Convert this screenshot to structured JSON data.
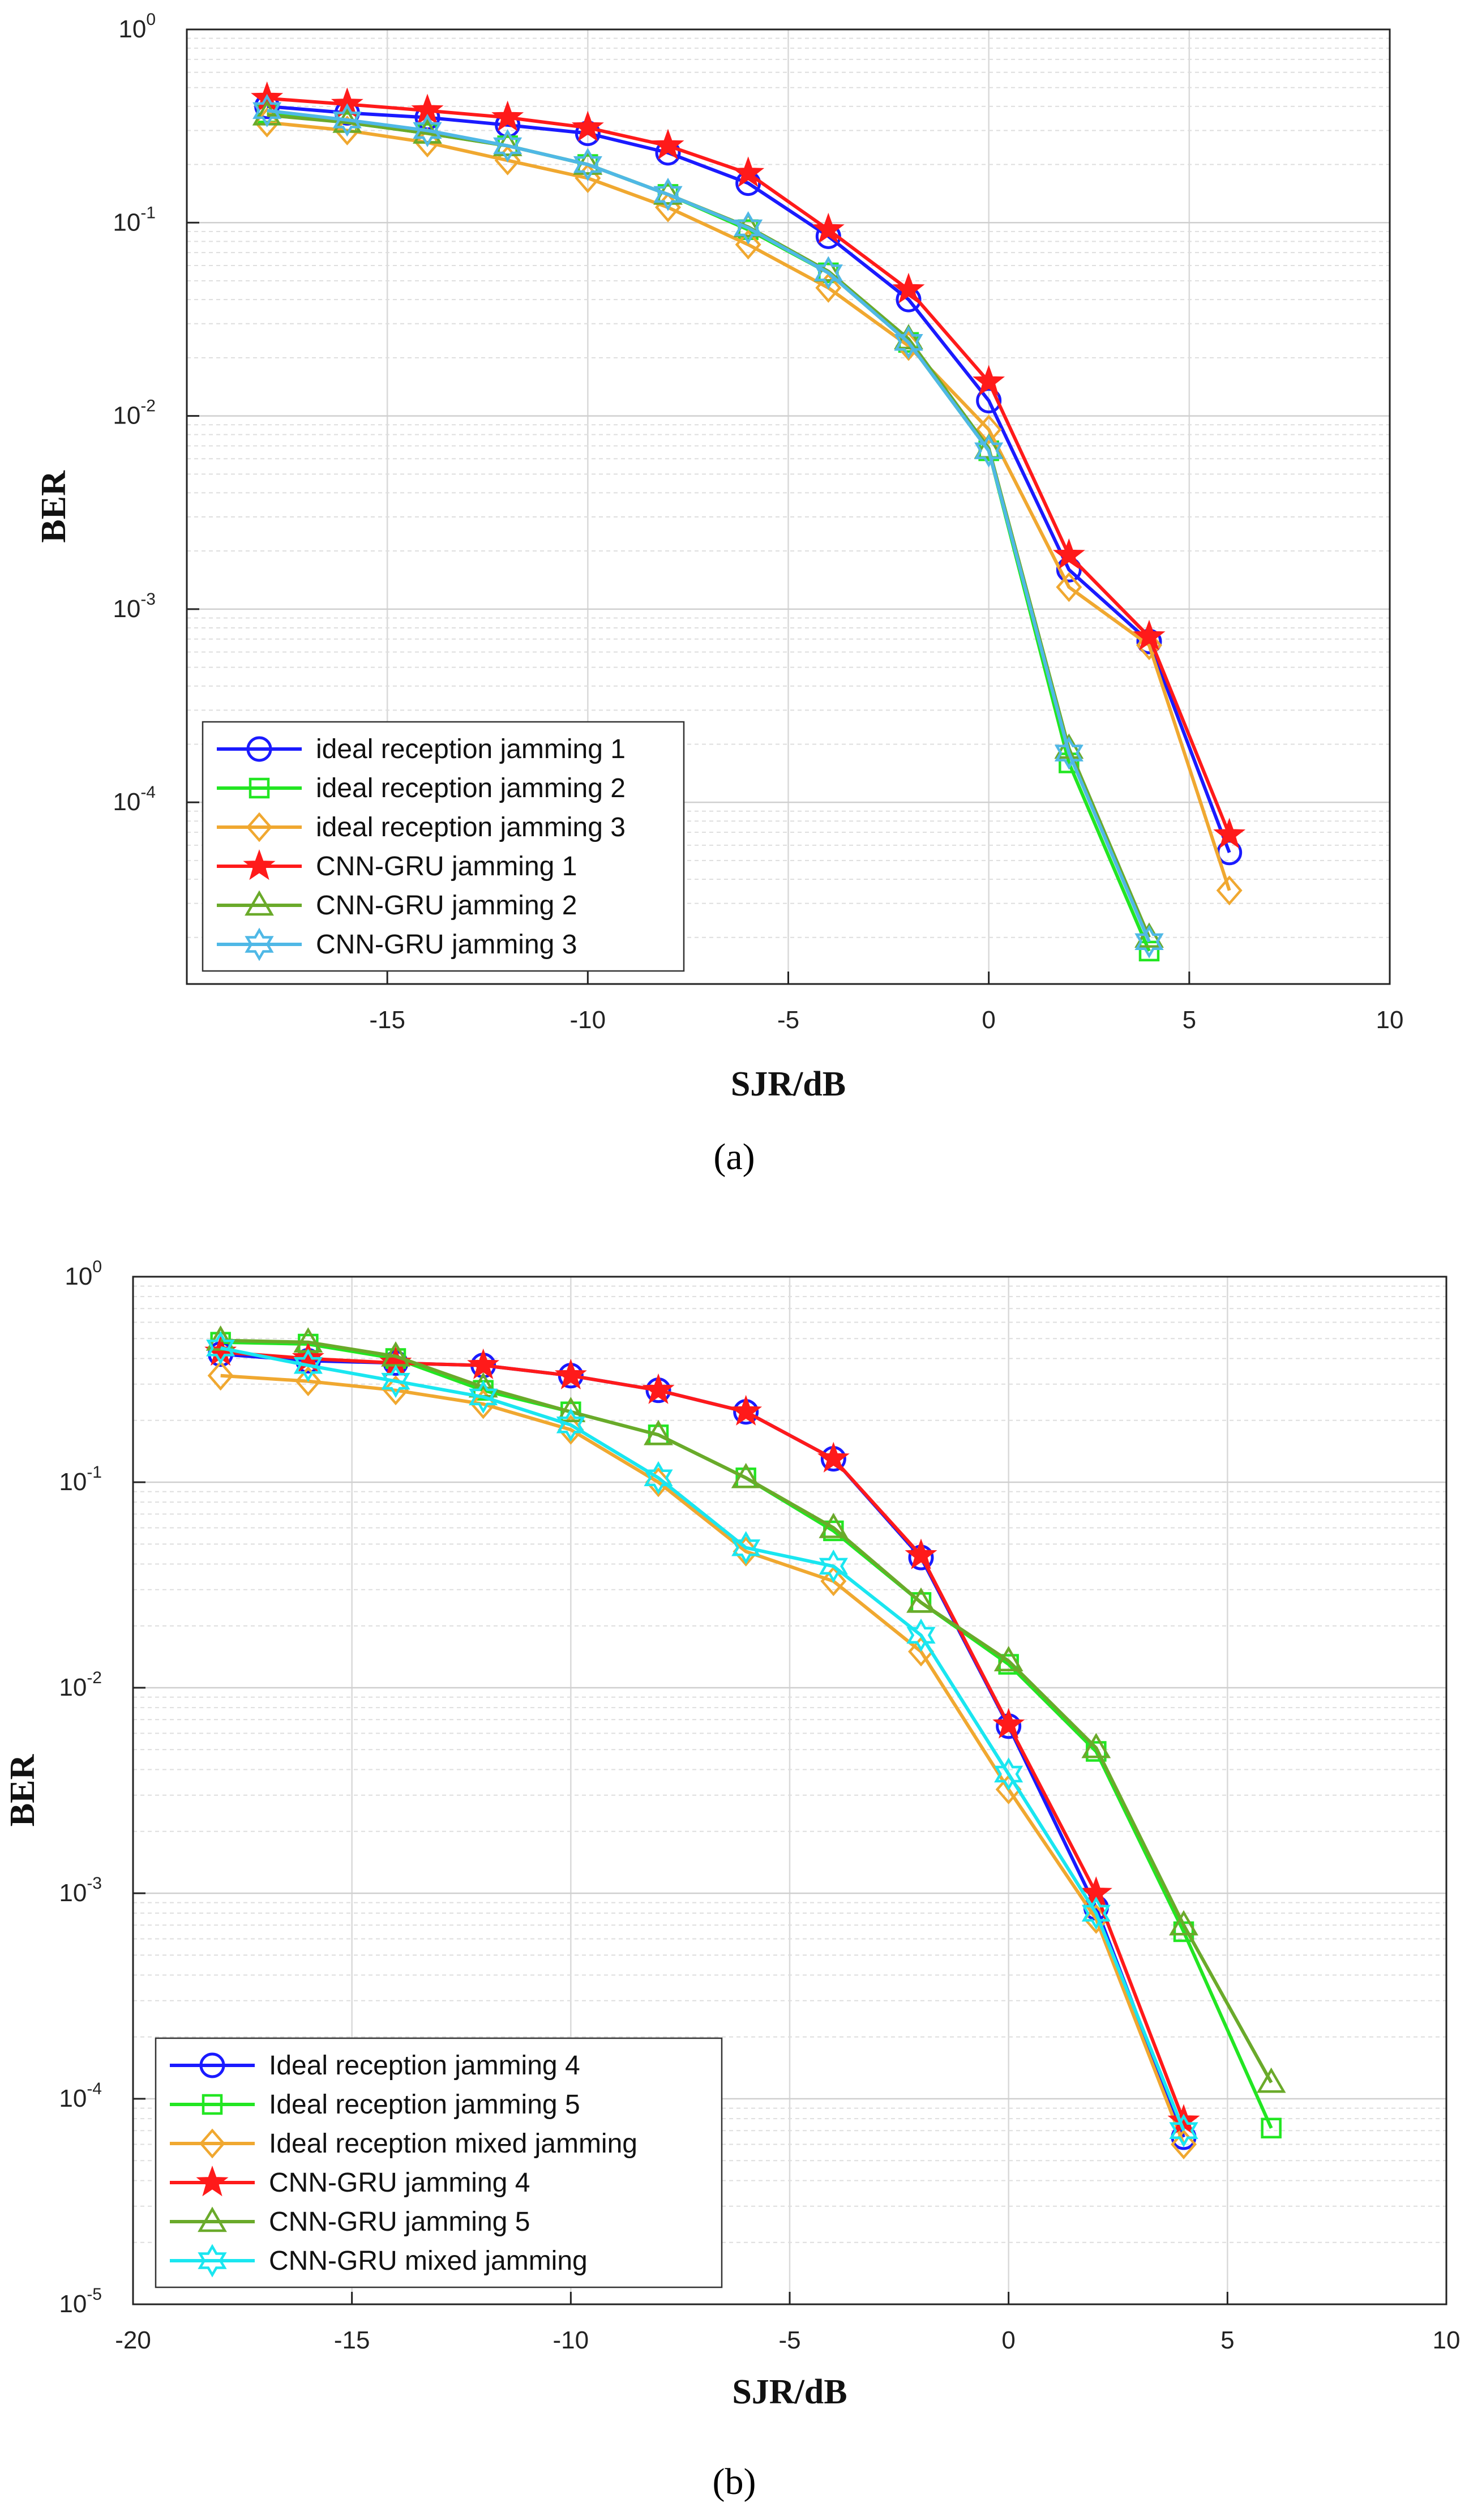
{
  "chart_data": [
    {
      "type": "line",
      "caption": "(a)",
      "xlabel": "SJR/dB",
      "ylabel": "BER",
      "yscale": "log",
      "xlim": [
        -20,
        10
      ],
      "ylim": [
        1e-05,
        1
      ],
      "xticks": [
        -15,
        -10,
        -5,
        0,
        5,
        10
      ],
      "xtick_labels": [
        "-15",
        "-10",
        "-5",
        "0",
        "5",
        "10"
      ],
      "yticks": [
        0.0001,
        0.001,
        0.01,
        0.1,
        1
      ],
      "ytick_labels": [
        {
          "base": "10",
          "exp": "-4"
        },
        {
          "base": "10",
          "exp": "-3"
        },
        {
          "base": "10",
          "exp": "-2"
        },
        {
          "base": "10",
          "exp": "-1"
        },
        {
          "base": "10",
          "exp": "0"
        }
      ],
      "grid": true,
      "legend_position": "bottom-left",
      "series": [
        {
          "name": "ideal reception jamming 1",
          "color": "#1a1aff",
          "marker": "circle",
          "x": [
            -18,
            -16,
            -14,
            -12,
            -10,
            -8,
            -6,
            -4,
            -2,
            0,
            2,
            4,
            6
          ],
          "y": [
            0.4,
            0.37,
            0.35,
            0.32,
            0.29,
            0.23,
            0.16,
            0.085,
            0.04,
            0.012,
            0.0016,
            0.00068,
            5.5e-05
          ]
        },
        {
          "name": "ideal reception jamming 2",
          "color": "#22e622",
          "marker": "square",
          "x": [
            -18,
            -16,
            -14,
            -12,
            -10,
            -8,
            -6,
            -4,
            -2,
            0,
            2,
            4
          ],
          "y": [
            0.37,
            0.33,
            0.29,
            0.25,
            0.2,
            0.14,
            0.092,
            0.055,
            0.024,
            0.0066,
            0.00016,
            1.7e-05
          ]
        },
        {
          "name": "ideal reception jamming 3",
          "color": "#f0a830",
          "marker": "diamond",
          "x": [
            -18,
            -16,
            -14,
            -12,
            -10,
            -8,
            -6,
            -4,
            -2,
            0,
            2,
            4,
            6
          ],
          "y": [
            0.33,
            0.3,
            0.26,
            0.21,
            0.17,
            0.12,
            0.077,
            0.046,
            0.023,
            0.0085,
            0.0013,
            0.00065,
            3.5e-05
          ]
        },
        {
          "name": "CNN-GRU jamming 1",
          "color": "#ff1a1a",
          "marker": "star",
          "x": [
            -18,
            -16,
            -14,
            -12,
            -10,
            -8,
            -6,
            -4,
            -2,
            0,
            2,
            4,
            6
          ],
          "y": [
            0.44,
            0.41,
            0.38,
            0.35,
            0.31,
            0.25,
            0.18,
            0.092,
            0.045,
            0.015,
            0.0019,
            0.00072,
            6.8e-05
          ]
        },
        {
          "name": "CNN-GRU jamming 2",
          "color": "#6aaa2a",
          "marker": "triangle",
          "x": [
            -18,
            -16,
            -14,
            -12,
            -10,
            -8,
            -6,
            -4,
            -2,
            0,
            2,
            4
          ],
          "y": [
            0.36,
            0.33,
            0.29,
            0.25,
            0.2,
            0.14,
            0.095,
            0.056,
            0.025,
            0.0068,
            0.00019,
            2e-05
          ]
        },
        {
          "name": "CNN-GRU jamming 3",
          "color": "#4fb8e6",
          "marker": "hexagram",
          "x": [
            -18,
            -16,
            -14,
            -12,
            -10,
            -8,
            -6,
            -4,
            -2,
            0,
            2,
            4
          ],
          "y": [
            0.38,
            0.34,
            0.3,
            0.25,
            0.2,
            0.14,
            0.094,
            0.055,
            0.024,
            0.0066,
            0.00018,
            1.9e-05
          ]
        }
      ]
    },
    {
      "type": "line",
      "caption": "(b)",
      "xlabel": "SJR/dB",
      "ylabel": "BER",
      "yscale": "log",
      "xlim": [
        -20,
        10
      ],
      "ylim": [
        1e-05,
        1
      ],
      "xticks": [
        -20,
        -15,
        -10,
        -5,
        0,
        5,
        10
      ],
      "xtick_labels": [
        "-20",
        "-15",
        "-10",
        "-5",
        "0",
        "5",
        "10"
      ],
      "yticks": [
        1e-05,
        0.0001,
        0.001,
        0.01,
        0.1,
        1
      ],
      "ytick_labels": [
        {
          "base": "10",
          "exp": "-5"
        },
        {
          "base": "10",
          "exp": "-4"
        },
        {
          "base": "10",
          "exp": "-3"
        },
        {
          "base": "10",
          "exp": "-2"
        },
        {
          "base": "10",
          "exp": "-1"
        },
        {
          "base": "10",
          "exp": "0"
        }
      ],
      "grid": true,
      "legend_position": "bottom-left",
      "series": [
        {
          "name": "Ideal reception  jamming 4",
          "color": "#1a1aff",
          "marker": "circle",
          "x": [
            -18,
            -16,
            -14,
            -12,
            -10,
            -8,
            -6,
            -4,
            -2,
            0,
            2,
            4
          ],
          "y": [
            0.42,
            0.39,
            0.38,
            0.37,
            0.33,
            0.28,
            0.22,
            0.13,
            0.043,
            0.0065,
            0.00085,
            6.5e-05
          ]
        },
        {
          "name": "Ideal reception  jamming 5",
          "color": "#22e622",
          "marker": "square",
          "x": [
            -18,
            -16,
            -14,
            -12,
            -10,
            -8,
            -6,
            -4,
            -2,
            0,
            2,
            4,
            6
          ],
          "y": [
            0.48,
            0.47,
            0.4,
            0.28,
            0.22,
            0.17,
            0.105,
            0.058,
            0.026,
            0.013,
            0.0049,
            0.00065,
            7.2e-05
          ]
        },
        {
          "name": "Ideal reception  mixed jamming",
          "color": "#f0a830",
          "marker": "diamond",
          "x": [
            -18,
            -16,
            -14,
            -12,
            -10,
            -8,
            -6,
            -4,
            -2,
            0,
            2,
            4
          ],
          "y": [
            0.33,
            0.31,
            0.28,
            0.24,
            0.18,
            0.1,
            0.046,
            0.033,
            0.015,
            0.0032,
            0.00075,
            6e-05
          ]
        },
        {
          "name": "CNN-GRU jamming 4",
          "color": "#ff1a1a",
          "marker": "star",
          "x": [
            -18,
            -16,
            -14,
            -12,
            -10,
            -8,
            -6,
            -4,
            -2,
            0,
            2,
            4
          ],
          "y": [
            0.43,
            0.4,
            0.38,
            0.37,
            0.33,
            0.28,
            0.22,
            0.13,
            0.044,
            0.0066,
            0.001,
            7.8e-05
          ]
        },
        {
          "name": "CNN-GRU jamming 5",
          "color": "#6aaa2a",
          "marker": "triangle",
          "x": [
            -18,
            -16,
            -14,
            -12,
            -10,
            -8,
            -6,
            -4,
            -2,
            0,
            2,
            4,
            6
          ],
          "y": [
            0.49,
            0.48,
            0.41,
            0.29,
            0.22,
            0.17,
            0.105,
            0.06,
            0.026,
            0.0135,
            0.0051,
            0.0007,
            0.00012
          ]
        },
        {
          "name": "CNN-GRU mixed jamming",
          "color": "#1ae6f0",
          "marker": "hexagram",
          "x": [
            -18,
            -16,
            -14,
            -12,
            -10,
            -8,
            -6,
            -4,
            -2,
            0,
            2,
            4
          ],
          "y": [
            0.45,
            0.37,
            0.31,
            0.26,
            0.19,
            0.105,
            0.048,
            0.039,
            0.018,
            0.0038,
            0.0008,
            7e-05
          ]
        }
      ]
    }
  ]
}
